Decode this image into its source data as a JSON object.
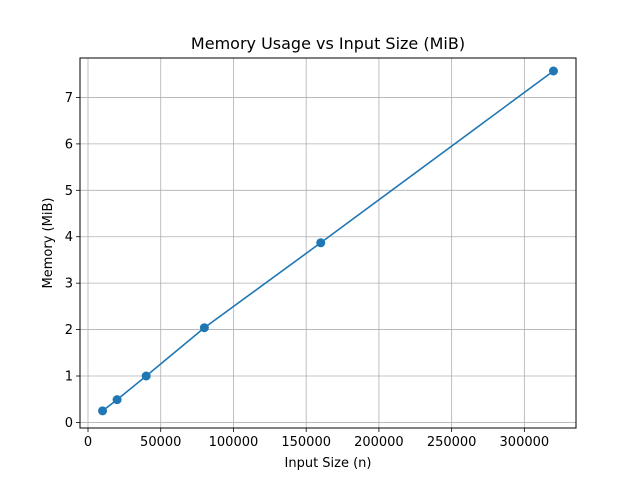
{
  "chart_data": {
    "type": "line",
    "title": "Memory Usage vs Input Size (MiB)",
    "xlabel": "Input Size (n)",
    "ylabel": "Memory (MiB)",
    "xlim": [
      -5500,
      335500
    ],
    "ylim": [
      -0.12,
      7.85
    ],
    "grid": true,
    "x_ticks": [
      0,
      50000,
      100000,
      150000,
      200000,
      250000,
      300000
    ],
    "y_ticks": [
      0,
      1,
      2,
      3,
      4,
      5,
      6,
      7
    ],
    "series": [
      {
        "color": "#1f77b4",
        "marker": "circle",
        "x": [
          10000,
          20000,
          40000,
          80000,
          160000,
          320000
        ],
        "y": [
          0.25,
          0.49,
          1.0,
          2.04,
          3.87,
          7.57
        ]
      }
    ]
  }
}
